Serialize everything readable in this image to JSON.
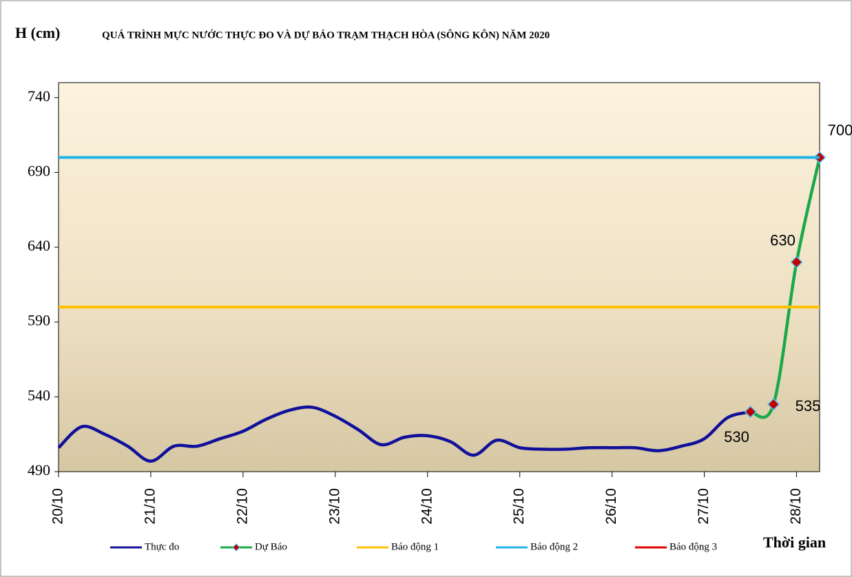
{
  "chart_data": {
    "type": "line",
    "title": "QUÁ TRÌNH MỰC NƯỚC THỰC ĐO VÀ DỰ BÁO TRẠM THẠCH HÒA (SÔNG KÔN) NĂM 2020",
    "y_label": "H (cm)",
    "x_label": "Thời gian",
    "xlim": [
      0,
      8.25
    ],
    "xticks": [
      {
        "value": 0,
        "label": "20/10"
      },
      {
        "value": 1,
        "label": "21/10"
      },
      {
        "value": 2,
        "label": "22/10"
      },
      {
        "value": 3,
        "label": "23/10"
      },
      {
        "value": 4,
        "label": "24/10"
      },
      {
        "value": 5,
        "label": "25/10"
      },
      {
        "value": 6,
        "label": "26/10"
      },
      {
        "value": 7,
        "label": "27/10"
      },
      {
        "value": 8,
        "label": "28/10"
      }
    ],
    "ylim": [
      490,
      750
    ],
    "yticks": [
      490,
      540,
      590,
      640,
      690,
      740
    ],
    "series": [
      {
        "name": "Thực đo",
        "color": "#10109a",
        "x": [
          0,
          0.25,
          0.5,
          0.75,
          1,
          1.25,
          1.5,
          1.75,
          2,
          2.25,
          2.5,
          2.75,
          3,
          3.25,
          3.5,
          3.75,
          4,
          4.25,
          4.5,
          4.75,
          5,
          5.25,
          5.5,
          5.75,
          6,
          6.25,
          6.5,
          6.75,
          7,
          7.25,
          7.5
        ],
        "values": [
          506,
          520,
          515,
          507,
          497,
          507,
          507,
          512,
          517,
          525,
          531,
          533,
          527,
          518,
          508,
          513,
          514,
          510,
          501,
          511,
          506,
          505,
          505,
          506,
          506,
          506,
          504,
          507,
          512,
          526,
          530
        ]
      },
      {
        "name": "Dự Báo",
        "color": "#1aa84a",
        "marker": true,
        "x": [
          7.5,
          7.75,
          8,
          8.25
        ],
        "values": [
          530,
          535,
          630,
          700
        ]
      },
      {
        "name": "Báo động 1",
        "color": "#ffc000",
        "level": 600
      },
      {
        "name": "Báo động 2",
        "color": "#1fb4e8",
        "level": 700
      },
      {
        "name": "Báo động 3",
        "color": "#e00000"
      }
    ]
  }
}
